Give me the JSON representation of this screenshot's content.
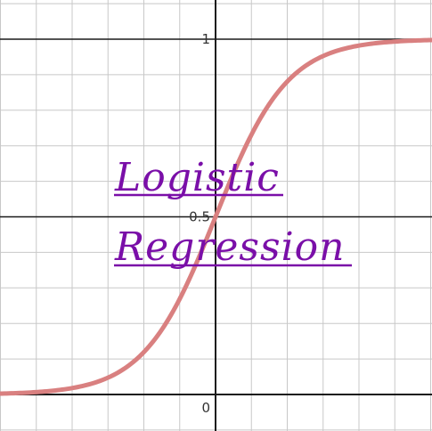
{
  "chart_data": {
    "type": "line",
    "title_lines": [
      "Logistic",
      "Regression"
    ],
    "xlabel": "",
    "ylabel": "",
    "xlim": [
      -6,
      6
    ],
    "ylim": [
      -0.1,
      1.1
    ],
    "x_gridlines": [
      -6,
      -5,
      -4,
      -3,
      -2,
      -1,
      0,
      1,
      2,
      3,
      4,
      5,
      6
    ],
    "y_gridlines": [
      -0.1,
      0,
      0.1,
      0.2,
      0.3,
      0.4,
      0.5,
      0.6,
      0.7,
      0.8,
      0.9,
      1.0,
      1.1
    ],
    "y_tick_labels": [
      {
        "value": 1,
        "label": "1"
      },
      {
        "value": 0.5,
        "label": "0.5"
      },
      {
        "value": 0,
        "label": "0"
      }
    ],
    "grid": true,
    "series": [
      {
        "function": "logistic",
        "x": [
          -6,
          -5,
          -4,
          -3,
          -2,
          -1,
          0,
          1,
          2,
          3,
          4,
          5,
          6
        ],
        "y": [
          0.0025,
          0.0067,
          0.018,
          0.047,
          0.119,
          0.269,
          0.5,
          0.731,
          0.881,
          0.953,
          0.982,
          0.9933,
          0.9975
        ],
        "color": "#d98080"
      }
    ]
  },
  "colors": {
    "axis": "#1a1a1a",
    "grid": "#c8c8c8",
    "curve": "#d98080",
    "title": "#7a0fa8"
  }
}
